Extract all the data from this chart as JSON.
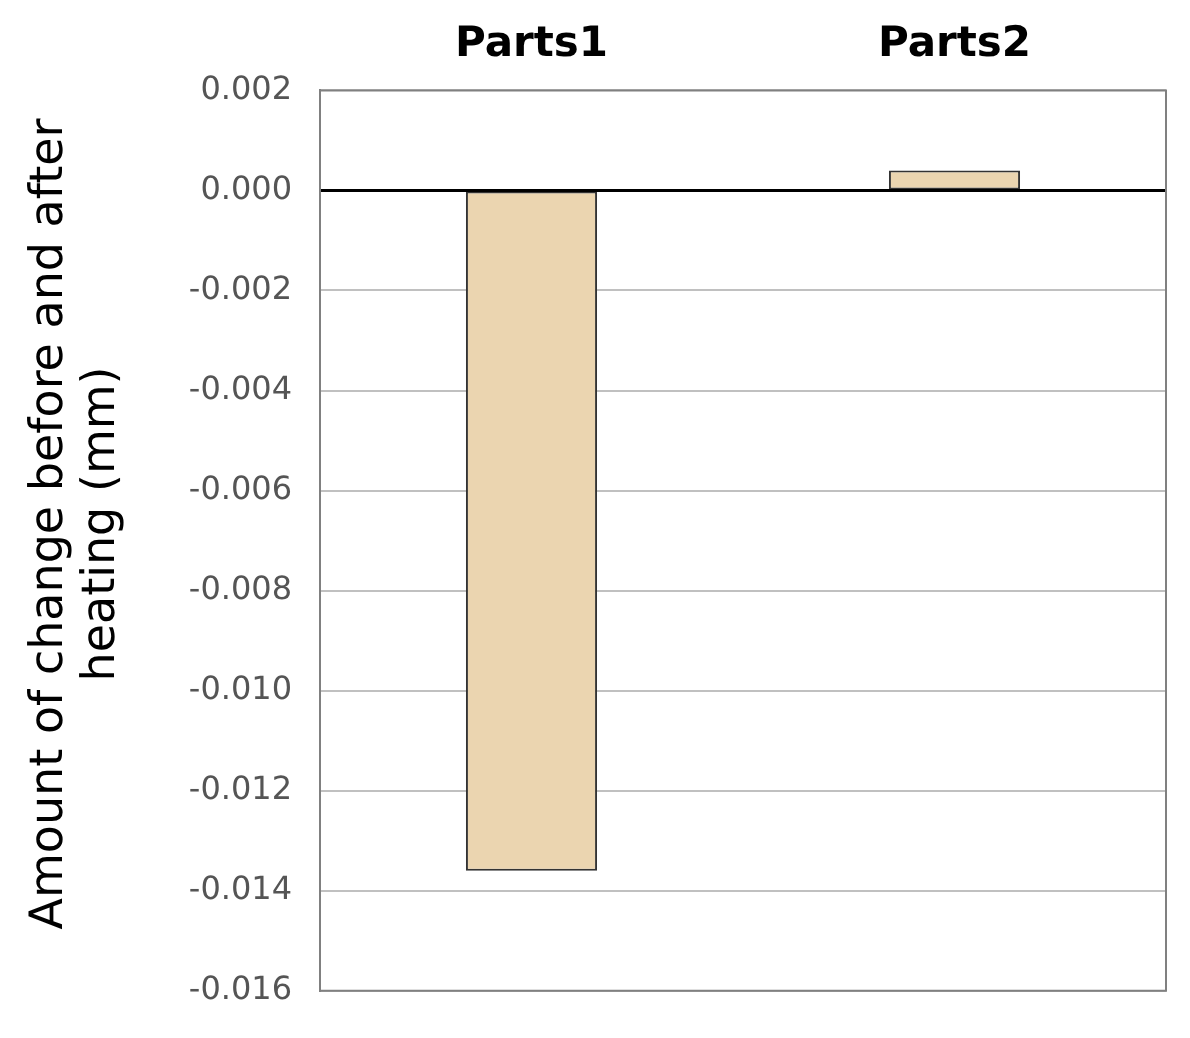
{
  "chart_data": {
    "type": "bar",
    "ylabel": "Amount of change before and after heating (mm)",
    "categories": [
      "Parts1",
      "Parts2"
    ],
    "values": [
      -0.0136,
      0.0004
    ],
    "color": "#ebd5b0",
    "ylim": [
      -0.016,
      0.002
    ],
    "yticks": [
      {
        "value": 0.002,
        "label": "0.002"
      },
      {
        "value": 0,
        "label": "0.000"
      },
      {
        "value": -0.002,
        "label": "-0.002"
      },
      {
        "value": -0.004,
        "label": "-0.004"
      },
      {
        "value": -0.006,
        "label": "-0.006"
      },
      {
        "value": -0.008,
        "label": "-0.008"
      },
      {
        "value": -0.01,
        "label": "-0.010"
      },
      {
        "value": -0.012,
        "label": "-0.012"
      },
      {
        "value": -0.014,
        "label": "-0.014"
      },
      {
        "value": -0.016,
        "label": "-0.016"
      }
    ],
    "grid": "y",
    "legend": false
  }
}
